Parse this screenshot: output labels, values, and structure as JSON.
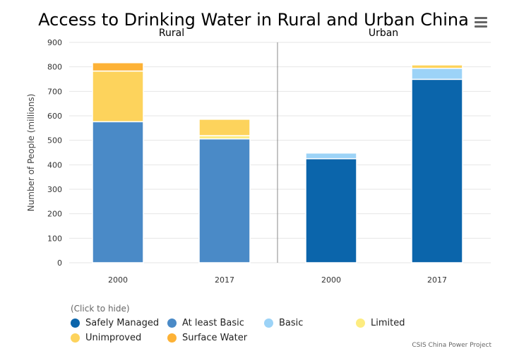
{
  "chart_data": {
    "type": "bar",
    "stacked": true,
    "title": "Access to Drinking Water in Rural and Urban China",
    "ylabel": "Number of People (millions)",
    "ylim": [
      0,
      900
    ],
    "yticks": [
      "0",
      "100",
      "200",
      "300",
      "400",
      "500",
      "600",
      "700",
      "800",
      "900"
    ],
    "grid": true,
    "groups": [
      "Rural",
      "Urban"
    ],
    "categories": [
      "2000",
      "2017",
      "2000",
      "2017"
    ],
    "category_group": [
      "Rural",
      "Rural",
      "Urban",
      "Urban"
    ],
    "series": [
      {
        "name": "Safely Managed",
        "color": "#0b65ab",
        "values": [
          0,
          0,
          425,
          749
        ]
      },
      {
        "name": "At least Basic",
        "color": "#4a8ac7",
        "values": [
          576,
          506,
          0,
          0
        ]
      },
      {
        "name": "Basic",
        "color": "#9cd3f7",
        "values": [
          0,
          0,
          23,
          45
        ]
      },
      {
        "name": "Limited",
        "color": "#fdec80",
        "values": [
          0,
          13,
          0,
          0
        ]
      },
      {
        "name": "Unimproved",
        "color": "#fdd35c",
        "values": [
          207,
          67,
          0,
          14
        ]
      },
      {
        "name": "Surface Water",
        "color": "#fdb236",
        "values": [
          34,
          0,
          0,
          0
        ]
      }
    ],
    "legend_placement": "bottom-left"
  },
  "legend_hint": "(Click to hide)",
  "credit": "CSIS China Power Project",
  "menu_icon": "hamburger-menu-icon"
}
